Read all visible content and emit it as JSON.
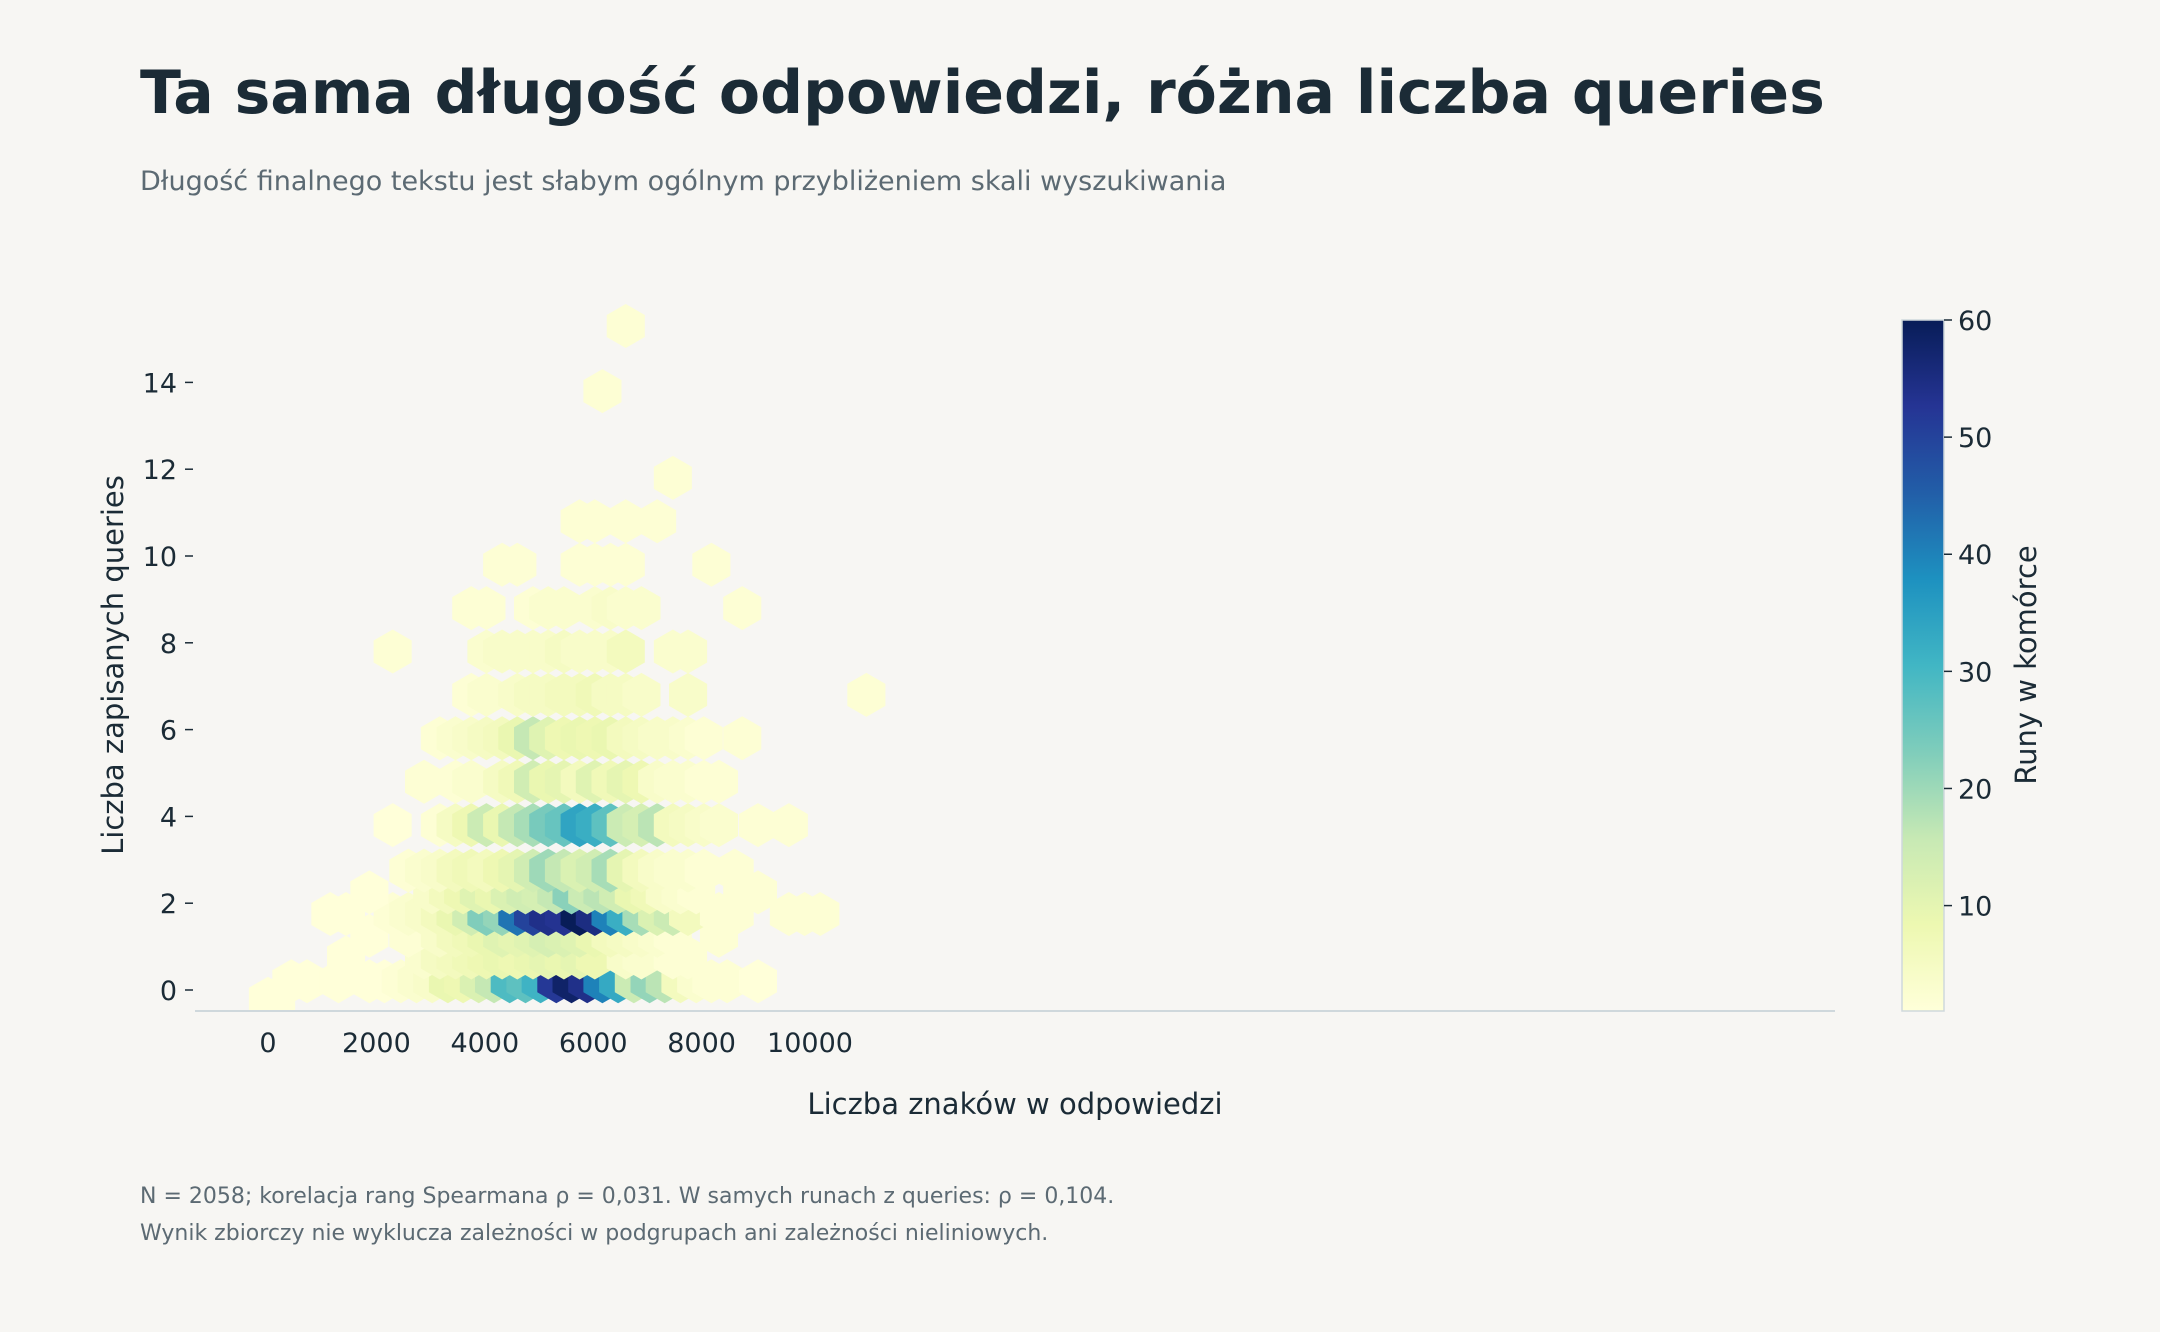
{
  "title": "Ta sama długość odpowiedzi, różna liczba queries",
  "subtitle": "Długość finalnego tekstu jest słabym ogólnym przybliżeniem skali wyszukiwania",
  "footnotes": [
    "N = 2058; korelacja rang Spearmana ρ = 0,031. W samych runach z queries: ρ = 0,104.",
    "Wynik zbiorczy nie wyklucza zależności w podgrupach ani zależności nieliniowych."
  ],
  "chart_data": {
    "type": "heatmap",
    "subtype": "hexbin",
    "title": "Ta sama długość odpowiedzi, różna liczba queries",
    "xlabel": "Liczba znaków w odpowiedzi",
    "ylabel": "Liczba zapisanych queries",
    "colorbar_label": "Runy w komórce",
    "xlim": [
      -500,
      11600
    ],
    "ylim": [
      -0.5,
      15.5
    ],
    "x_ticks": [
      0,
      2000,
      4000,
      6000,
      8000,
      10000
    ],
    "x_tick_labels": [
      "0",
      "2000",
      "4000",
      "6000",
      "8000",
      "10000"
    ],
    "y_ticks": [
      0,
      2,
      4,
      6,
      8,
      10,
      12,
      14
    ],
    "y_tick_labels": [
      "0",
      "2",
      "4",
      "6",
      "8",
      "10",
      "12",
      "14"
    ],
    "color_range": [
      1,
      60
    ],
    "colorbar_ticks": [
      10,
      20,
      30,
      40,
      50,
      60
    ],
    "colorbar_tick_labels": [
      "10",
      "20",
      "30",
      "40",
      "50",
      "60"
    ],
    "colormap": [
      "#ffffd9",
      "#edf8b1",
      "#c7e9b4",
      "#7fcdbb",
      "#41b6c4",
      "#1d91c0",
      "#225ea8",
      "#253494",
      "#081d58"
    ],
    "grid": false,
    "points": [
      {
        "x": 0,
        "y": -0.2,
        "count": 1
      },
      {
        "x": 150,
        "y": -0.2,
        "count": 1
      },
      {
        "x": 430,
        "y": 0.2,
        "count": 1
      },
      {
        "x": 720,
        "y": 0.2,
        "count": 1
      },
      {
        "x": 1300,
        "y": 0.2,
        "count": 1
      },
      {
        "x": 1870,
        "y": 0.2,
        "count": 1
      },
      {
        "x": 2150,
        "y": 0.2,
        "count": 1
      },
      {
        "x": 2450,
        "y": 0.2,
        "count": 2
      },
      {
        "x": 2740,
        "y": 0.2,
        "count": 3
      },
      {
        "x": 3030,
        "y": 0.2,
        "count": 4
      },
      {
        "x": 3320,
        "y": 0.2,
        "count": 9
      },
      {
        "x": 3600,
        "y": 0.2,
        "count": 8
      },
      {
        "x": 3890,
        "y": 0.2,
        "count": 12
      },
      {
        "x": 4170,
        "y": 0.2,
        "count": 16
      },
      {
        "x": 4460,
        "y": 0.2,
        "count": 29
      },
      {
        "x": 4750,
        "y": 0.2,
        "count": 27
      },
      {
        "x": 5030,
        "y": 0.2,
        "count": 31
      },
      {
        "x": 5320,
        "y": 0.2,
        "count": 52
      },
      {
        "x": 5600,
        "y": 0.2,
        "count": 58
      },
      {
        "x": 5890,
        "y": 0.2,
        "count": 54
      },
      {
        "x": 6170,
        "y": 0.2,
        "count": 40
      },
      {
        "x": 6460,
        "y": 0.2,
        "count": 33
      },
      {
        "x": 6750,
        "y": 0.2,
        "count": 15
      },
      {
        "x": 7040,
        "y": 0.2,
        "count": 21
      },
      {
        "x": 7320,
        "y": 0.2,
        "count": 17
      },
      {
        "x": 7610,
        "y": 0.2,
        "count": 6
      },
      {
        "x": 7900,
        "y": 0.2,
        "count": 3
      },
      {
        "x": 8180,
        "y": 0.2,
        "count": 2
      },
      {
        "x": 8470,
        "y": 0.2,
        "count": 2
      },
      {
        "x": 9040,
        "y": 0.2,
        "count": 1
      },
      {
        "x": 1440,
        "y": 0.75,
        "count": 1
      },
      {
        "x": 2880,
        "y": 0.75,
        "count": 3
      },
      {
        "x": 3170,
        "y": 0.75,
        "count": 5
      },
      {
        "x": 3460,
        "y": 0.75,
        "count": 6
      },
      {
        "x": 3750,
        "y": 0.75,
        "count": 7
      },
      {
        "x": 4030,
        "y": 0.75,
        "count": 8
      },
      {
        "x": 4320,
        "y": 0.75,
        "count": 9
      },
      {
        "x": 4600,
        "y": 0.75,
        "count": 8
      },
      {
        "x": 4890,
        "y": 0.75,
        "count": 9
      },
      {
        "x": 5170,
        "y": 0.75,
        "count": 10
      },
      {
        "x": 5460,
        "y": 0.75,
        "count": 9
      },
      {
        "x": 5750,
        "y": 0.75,
        "count": 10
      },
      {
        "x": 6030,
        "y": 0.75,
        "count": 8
      },
      {
        "x": 6600,
        "y": 0.75,
        "count": 4
      },
      {
        "x": 6890,
        "y": 0.75,
        "count": 3
      },
      {
        "x": 7470,
        "y": 0.75,
        "count": 2
      },
      {
        "x": 7750,
        "y": 0.75,
        "count": 2
      },
      {
        "x": 1870,
        "y": 1.25,
        "count": 1
      },
      {
        "x": 2590,
        "y": 1.25,
        "count": 2
      },
      {
        "x": 3170,
        "y": 1.25,
        "count": 4
      },
      {
        "x": 3460,
        "y": 1.25,
        "count": 6
      },
      {
        "x": 3750,
        "y": 1.25,
        "count": 7
      },
      {
        "x": 4030,
        "y": 1.25,
        "count": 9
      },
      {
        "x": 4320,
        "y": 1.25,
        "count": 11
      },
      {
        "x": 4600,
        "y": 1.25,
        "count": 10
      },
      {
        "x": 4890,
        "y": 1.25,
        "count": 11
      },
      {
        "x": 5170,
        "y": 1.25,
        "count": 13
      },
      {
        "x": 5460,
        "y": 1.25,
        "count": 12
      },
      {
        "x": 5750,
        "y": 1.25,
        "count": 11
      },
      {
        "x": 6030,
        "y": 1.25,
        "count": 9
      },
      {
        "x": 6320,
        "y": 1.25,
        "count": 6
      },
      {
        "x": 6600,
        "y": 1.25,
        "count": 5
      },
      {
        "x": 6890,
        "y": 1.25,
        "count": 4
      },
      {
        "x": 7180,
        "y": 1.25,
        "count": 3
      },
      {
        "x": 7470,
        "y": 1.25,
        "count": 2
      },
      {
        "x": 8320,
        "y": 1.25,
        "count": 2
      },
      {
        "x": 1150,
        "y": 1.75,
        "count": 1
      },
      {
        "x": 1440,
        "y": 1.75,
        "count": 1
      },
      {
        "x": 2300,
        "y": 1.75,
        "count": 2
      },
      {
        "x": 2590,
        "y": 1.75,
        "count": 3
      },
      {
        "x": 2880,
        "y": 1.75,
        "count": 4
      },
      {
        "x": 3170,
        "y": 1.75,
        "count": 6
      },
      {
        "x": 3460,
        "y": 1.75,
        "count": 9
      },
      {
        "x": 3750,
        "y": 1.75,
        "count": 14
      },
      {
        "x": 4030,
        "y": 1.75,
        "count": 23
      },
      {
        "x": 4320,
        "y": 1.75,
        "count": 21
      },
      {
        "x": 4600,
        "y": 1.75,
        "count": 42
      },
      {
        "x": 4890,
        "y": 1.75,
        "count": 50
      },
      {
        "x": 5170,
        "y": 1.75,
        "count": 54
      },
      {
        "x": 5460,
        "y": 1.75,
        "count": 53
      },
      {
        "x": 5750,
        "y": 1.75,
        "count": 60
      },
      {
        "x": 6030,
        "y": 1.75,
        "count": 55
      },
      {
        "x": 6320,
        "y": 1.75,
        "count": 40
      },
      {
        "x": 6600,
        "y": 1.75,
        "count": 32
      },
      {
        "x": 6890,
        "y": 1.75,
        "count": 19
      },
      {
        "x": 7180,
        "y": 1.75,
        "count": 12
      },
      {
        "x": 7470,
        "y": 1.75,
        "count": 15
      },
      {
        "x": 7750,
        "y": 1.75,
        "count": 6
      },
      {
        "x": 8320,
        "y": 1.75,
        "count": 2
      },
      {
        "x": 8610,
        "y": 1.75,
        "count": 2
      },
      {
        "x": 9610,
        "y": 1.75,
        "count": 2
      },
      {
        "x": 9900,
        "y": 1.75,
        "count": 2
      },
      {
        "x": 10190,
        "y": 1.75,
        "count": 2
      },
      {
        "x": 1870,
        "y": 2.25,
        "count": 1
      },
      {
        "x": 3030,
        "y": 2.25,
        "count": 4
      },
      {
        "x": 3320,
        "y": 2.25,
        "count": 6
      },
      {
        "x": 3600,
        "y": 2.25,
        "count": 8
      },
      {
        "x": 3890,
        "y": 2.25,
        "count": 11
      },
      {
        "x": 4170,
        "y": 2.25,
        "count": 9
      },
      {
        "x": 4460,
        "y": 2.25,
        "count": 12
      },
      {
        "x": 4750,
        "y": 2.25,
        "count": 14
      },
      {
        "x": 5030,
        "y": 2.25,
        "count": 13
      },
      {
        "x": 5320,
        "y": 2.25,
        "count": 16
      },
      {
        "x": 5600,
        "y": 2.25,
        "count": 22
      },
      {
        "x": 5890,
        "y": 2.25,
        "count": 15
      },
      {
        "x": 6170,
        "y": 2.25,
        "count": 17
      },
      {
        "x": 6460,
        "y": 2.25,
        "count": 14
      },
      {
        "x": 6750,
        "y": 2.25,
        "count": 9
      },
      {
        "x": 7040,
        "y": 2.25,
        "count": 7
      },
      {
        "x": 7320,
        "y": 2.25,
        "count": 4
      },
      {
        "x": 7610,
        "y": 2.25,
        "count": 3
      },
      {
        "x": 7900,
        "y": 2.25,
        "count": 2
      },
      {
        "x": 8750,
        "y": 2.25,
        "count": 2
      },
      {
        "x": 9040,
        "y": 2.25,
        "count": 2
      },
      {
        "x": 2590,
        "y": 2.75,
        "count": 2
      },
      {
        "x": 2880,
        "y": 2.75,
        "count": 3
      },
      {
        "x": 3170,
        "y": 2.75,
        "count": 4
      },
      {
        "x": 3460,
        "y": 2.75,
        "count": 6
      },
      {
        "x": 3750,
        "y": 2.75,
        "count": 7
      },
      {
        "x": 4030,
        "y": 2.75,
        "count": 6
      },
      {
        "x": 4320,
        "y": 2.75,
        "count": 8
      },
      {
        "x": 4600,
        "y": 2.75,
        "count": 10
      },
      {
        "x": 4890,
        "y": 2.75,
        "count": 14
      },
      {
        "x": 5170,
        "y": 2.75,
        "count": 20
      },
      {
        "x": 5460,
        "y": 2.75,
        "count": 16
      },
      {
        "x": 5750,
        "y": 2.75,
        "count": 12
      },
      {
        "x": 6030,
        "y": 2.75,
        "count": 14
      },
      {
        "x": 6320,
        "y": 2.75,
        "count": 19
      },
      {
        "x": 6600,
        "y": 2.75,
        "count": 10
      },
      {
        "x": 6890,
        "y": 2.75,
        "count": 6
      },
      {
        "x": 7180,
        "y": 2.75,
        "count": 4
      },
      {
        "x": 7470,
        "y": 2.75,
        "count": 3
      },
      {
        "x": 7750,
        "y": 2.75,
        "count": 3
      },
      {
        "x": 8040,
        "y": 2.75,
        "count": 2
      },
      {
        "x": 8610,
        "y": 2.75,
        "count": 2
      },
      {
        "x": 2300,
        "y": 3.8,
        "count": 1
      },
      {
        "x": 3170,
        "y": 3.8,
        "count": 2
      },
      {
        "x": 3460,
        "y": 3.8,
        "count": 5
      },
      {
        "x": 3750,
        "y": 3.8,
        "count": 8
      },
      {
        "x": 4030,
        "y": 3.8,
        "count": 15
      },
      {
        "x": 4320,
        "y": 3.8,
        "count": 9
      },
      {
        "x": 4600,
        "y": 3.8,
        "count": 16
      },
      {
        "x": 4890,
        "y": 3.8,
        "count": 19
      },
      {
        "x": 5170,
        "y": 3.8,
        "count": 24
      },
      {
        "x": 5460,
        "y": 3.8,
        "count": 26
      },
      {
        "x": 5750,
        "y": 3.8,
        "count": 34
      },
      {
        "x": 6030,
        "y": 3.8,
        "count": 32
      },
      {
        "x": 6320,
        "y": 3.8,
        "count": 27
      },
      {
        "x": 6600,
        "y": 3.8,
        "count": 15
      },
      {
        "x": 6890,
        "y": 3.8,
        "count": 13
      },
      {
        "x": 7180,
        "y": 3.8,
        "count": 17
      },
      {
        "x": 7470,
        "y": 3.8,
        "count": 6
      },
      {
        "x": 7750,
        "y": 3.8,
        "count": 5
      },
      {
        "x": 8040,
        "y": 3.8,
        "count": 4
      },
      {
        "x": 8320,
        "y": 3.8,
        "count": 3
      },
      {
        "x": 9040,
        "y": 3.8,
        "count": 2
      },
      {
        "x": 9610,
        "y": 3.8,
        "count": 2
      },
      {
        "x": 2880,
        "y": 4.8,
        "count": 2
      },
      {
        "x": 3460,
        "y": 4.8,
        "count": 2
      },
      {
        "x": 3750,
        "y": 4.8,
        "count": 3
      },
      {
        "x": 4320,
        "y": 4.8,
        "count": 5
      },
      {
        "x": 4600,
        "y": 4.8,
        "count": 7
      },
      {
        "x": 4890,
        "y": 4.8,
        "count": 14
      },
      {
        "x": 5170,
        "y": 4.8,
        "count": 9
      },
      {
        "x": 5460,
        "y": 4.8,
        "count": 10
      },
      {
        "x": 5750,
        "y": 4.8,
        "count": 6
      },
      {
        "x": 6030,
        "y": 4.8,
        "count": 11
      },
      {
        "x": 6320,
        "y": 4.8,
        "count": 7
      },
      {
        "x": 6600,
        "y": 4.8,
        "count": 10
      },
      {
        "x": 6890,
        "y": 4.8,
        "count": 8
      },
      {
        "x": 7180,
        "y": 4.8,
        "count": 4
      },
      {
        "x": 7470,
        "y": 4.8,
        "count": 3
      },
      {
        "x": 7750,
        "y": 4.8,
        "count": 3
      },
      {
        "x": 8040,
        "y": 4.8,
        "count": 2
      },
      {
        "x": 8320,
        "y": 4.8,
        "count": 2
      },
      {
        "x": 3170,
        "y": 5.8,
        "count": 2
      },
      {
        "x": 3460,
        "y": 5.8,
        "count": 3
      },
      {
        "x": 3750,
        "y": 5.8,
        "count": 4
      },
      {
        "x": 4030,
        "y": 5.8,
        "count": 5
      },
      {
        "x": 4320,
        "y": 5.8,
        "count": 6
      },
      {
        "x": 4600,
        "y": 5.8,
        "count": 9
      },
      {
        "x": 4890,
        "y": 5.8,
        "count": 16
      },
      {
        "x": 5170,
        "y": 5.8,
        "count": 11
      },
      {
        "x": 5460,
        "y": 5.8,
        "count": 8
      },
      {
        "x": 5750,
        "y": 5.8,
        "count": 9
      },
      {
        "x": 6030,
        "y": 5.8,
        "count": 8
      },
      {
        "x": 6320,
        "y": 5.8,
        "count": 9
      },
      {
        "x": 6600,
        "y": 5.8,
        "count": 6
      },
      {
        "x": 6890,
        "y": 5.8,
        "count": 5
      },
      {
        "x": 7180,
        "y": 5.8,
        "count": 4
      },
      {
        "x": 7470,
        "y": 5.8,
        "count": 4
      },
      {
        "x": 7750,
        "y": 5.8,
        "count": 3
      },
      {
        "x": 8040,
        "y": 5.8,
        "count": 2
      },
      {
        "x": 8750,
        "y": 5.8,
        "count": 2
      },
      {
        "x": 3750,
        "y": 6.8,
        "count": 2
      },
      {
        "x": 4030,
        "y": 6.8,
        "count": 3
      },
      {
        "x": 4600,
        "y": 6.8,
        "count": 4
      },
      {
        "x": 4890,
        "y": 6.8,
        "count": 5
      },
      {
        "x": 5170,
        "y": 6.8,
        "count": 5
      },
      {
        "x": 5460,
        "y": 6.8,
        "count": 6
      },
      {
        "x": 5750,
        "y": 6.8,
        "count": 6
      },
      {
        "x": 6030,
        "y": 6.8,
        "count": 7
      },
      {
        "x": 6320,
        "y": 6.8,
        "count": 5
      },
      {
        "x": 6600,
        "y": 6.8,
        "count": 5
      },
      {
        "x": 6890,
        "y": 6.8,
        "count": 4
      },
      {
        "x": 7750,
        "y": 6.8,
        "count": 4
      },
      {
        "x": 11040,
        "y": 6.8,
        "count": 2
      },
      {
        "x": 2300,
        "y": 7.8,
        "count": 2
      },
      {
        "x": 4030,
        "y": 7.8,
        "count": 3
      },
      {
        "x": 4320,
        "y": 7.8,
        "count": 4
      },
      {
        "x": 4600,
        "y": 7.8,
        "count": 4
      },
      {
        "x": 4890,
        "y": 7.8,
        "count": 4
      },
      {
        "x": 5170,
        "y": 7.8,
        "count": 4
      },
      {
        "x": 5460,
        "y": 7.8,
        "count": 5
      },
      {
        "x": 5750,
        "y": 7.8,
        "count": 4
      },
      {
        "x": 6030,
        "y": 7.8,
        "count": 4
      },
      {
        "x": 6320,
        "y": 7.8,
        "count": 4
      },
      {
        "x": 6600,
        "y": 7.8,
        "count": 6
      },
      {
        "x": 7470,
        "y": 7.8,
        "count": 3
      },
      {
        "x": 7750,
        "y": 7.8,
        "count": 3
      },
      {
        "x": 3750,
        "y": 8.8,
        "count": 2
      },
      {
        "x": 4030,
        "y": 8.8,
        "count": 2
      },
      {
        "x": 4890,
        "y": 8.8,
        "count": 2
      },
      {
        "x": 5170,
        "y": 8.8,
        "count": 3
      },
      {
        "x": 5460,
        "y": 8.8,
        "count": 3
      },
      {
        "x": 6030,
        "y": 8.8,
        "count": 3
      },
      {
        "x": 6320,
        "y": 8.8,
        "count": 4
      },
      {
        "x": 6600,
        "y": 8.8,
        "count": 3
      },
      {
        "x": 6890,
        "y": 8.8,
        "count": 3
      },
      {
        "x": 8750,
        "y": 8.8,
        "count": 2
      },
      {
        "x": 4320,
        "y": 9.8,
        "count": 2
      },
      {
        "x": 4600,
        "y": 9.8,
        "count": 2
      },
      {
        "x": 5750,
        "y": 9.8,
        "count": 2
      },
      {
        "x": 6030,
        "y": 9.8,
        "count": 2
      },
      {
        "x": 6320,
        "y": 9.8,
        "count": 2
      },
      {
        "x": 6600,
        "y": 9.8,
        "count": 2
      },
      {
        "x": 8180,
        "y": 9.8,
        "count": 2
      },
      {
        "x": 5750,
        "y": 10.8,
        "count": 2
      },
      {
        "x": 6030,
        "y": 10.8,
        "count": 2
      },
      {
        "x": 6600,
        "y": 10.8,
        "count": 2
      },
      {
        "x": 7180,
        "y": 10.8,
        "count": 2
      },
      {
        "x": 7470,
        "y": 11.8,
        "count": 2
      },
      {
        "x": 6170,
        "y": 13.8,
        "count": 2
      },
      {
        "x": 6600,
        "y": 15.3,
        "count": 2
      }
    ]
  }
}
